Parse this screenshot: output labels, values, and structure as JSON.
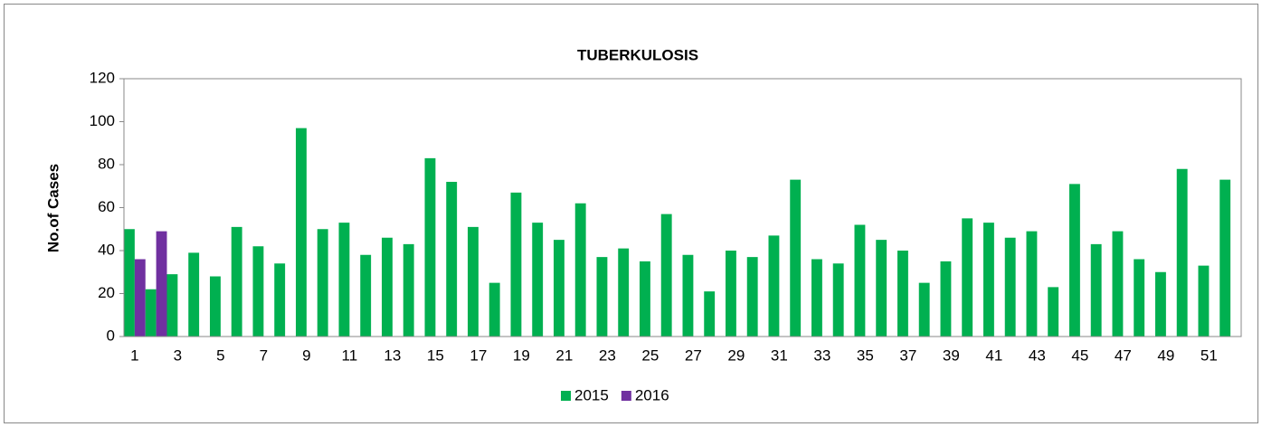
{
  "chart_data": {
    "type": "bar",
    "title": "TUBERKULOSIS",
    "y_label": "No.of Cases",
    "categories": [
      1,
      null,
      3,
      null,
      5,
      null,
      7,
      null,
      9,
      null,
      11,
      null,
      13,
      null,
      15,
      null,
      17,
      null,
      19,
      null,
      21,
      null,
      23,
      null,
      25,
      null,
      27,
      null,
      29,
      null,
      31,
      null,
      33,
      null,
      35,
      null,
      37,
      null,
      39,
      null,
      41,
      null,
      43,
      null,
      45,
      null,
      47,
      null,
      49,
      null,
      51,
      null
    ],
    "series": [
      {
        "name": "2015",
        "color": "#00b050",
        "values": [
          50,
          22,
          29,
          39,
          28,
          51,
          42,
          34,
          97,
          50,
          53,
          38,
          46,
          43,
          83,
          72,
          51,
          25,
          67,
          53,
          45,
          62,
          37,
          41,
          35,
          57,
          38,
          21,
          40,
          37,
          47,
          73,
          36,
          34,
          52,
          45,
          40,
          25,
          35,
          55,
          53,
          46,
          49,
          23,
          71,
          43,
          49,
          36,
          30,
          78,
          33,
          73
        ]
      },
      {
        "name": "2016",
        "color": "#7030a0",
        "values": [
          36,
          49,
          null,
          null,
          null,
          null,
          null,
          null,
          null,
          null,
          null,
          null,
          null,
          null,
          null,
          null,
          null,
          null,
          null,
          null,
          null,
          null,
          null,
          null,
          null,
          null,
          null,
          null,
          null,
          null,
          null,
          null,
          null,
          null,
          null,
          null,
          null,
          null,
          null,
          null,
          null,
          null,
          null,
          null,
          null,
          null,
          null,
          null,
          null,
          null,
          null,
          null
        ]
      }
    ],
    "ylim": [
      0,
      120
    ],
    "yticks": [
      0,
      20,
      40,
      60,
      80,
      100,
      120
    ],
    "grid": false,
    "legend": "bottom"
  }
}
